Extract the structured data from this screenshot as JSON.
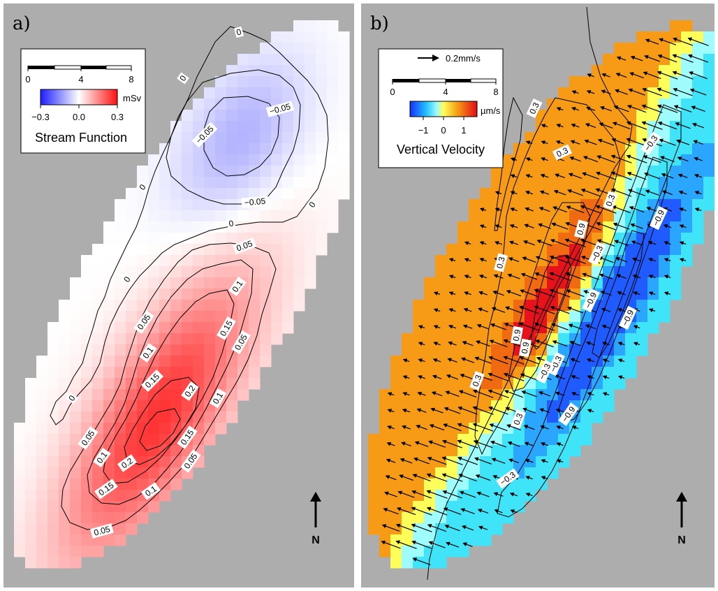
{
  "panels": [
    {
      "id": "a",
      "label": "a)",
      "scale_ticks": [
        "0",
        "4",
        "8"
      ],
      "colorbar_unit": "mSv",
      "colorbar_ticks": [
        "−0.3",
        "0.0",
        "0.3"
      ],
      "colorbar_title": "Stream Function",
      "north_label": "N"
    },
    {
      "id": "b",
      "label": "b)",
      "vector_scale_label": "0.2mm/s",
      "scale_ticks": [
        "0",
        "4",
        "8"
      ],
      "colorbar_unit": "µm/s",
      "colorbar_ticks": [
        "−1",
        "0",
        "1"
      ],
      "colorbar_title": "Vertical Velocity",
      "north_label": "N"
    }
  ],
  "colors": {
    "background": "#adadad",
    "stream_negative": "#2d3fff",
    "stream_positive": "#ff1f1f",
    "vv_blue": "#1f5bff",
    "vv_cyan": "#9ffcfc",
    "vv_yellow": "#fefe5a",
    "vv_orange": "#f79a16",
    "vv_red": "#e8121d"
  },
  "chart_data": [
    {
      "type": "heatmap",
      "field": "stream function",
      "unit": "mSv",
      "colorbar_range": [
        -0.3,
        0.3
      ],
      "contour_levels": [
        -0.05,
        0,
        0.05,
        0.1,
        0.15,
        0.2
      ],
      "contour_labels": [
        {
          "value": "0"
        },
        {
          "value": "0"
        },
        {
          "value": "0"
        },
        {
          "value": "0"
        },
        {
          "value": "0"
        },
        {
          "value": "0"
        },
        {
          "value": "0"
        },
        {
          "value": "−0.05"
        },
        {
          "value": "−0.05"
        },
        {
          "value": "−0.05"
        },
        {
          "value": "0.05"
        },
        {
          "value": "0.05"
        },
        {
          "value": "0.05"
        },
        {
          "value": "0.05"
        },
        {
          "value": "0.05"
        },
        {
          "value": "0.05"
        },
        {
          "value": "0.1"
        },
        {
          "value": "0.1"
        },
        {
          "value": "0.1"
        },
        {
          "value": "0.1"
        },
        {
          "value": "0.1"
        },
        {
          "value": "0.15"
        },
        {
          "value": "0.15"
        },
        {
          "value": "0.15"
        },
        {
          "value": "0.15"
        },
        {
          "value": "0.2"
        },
        {
          "value": "0.2"
        }
      ],
      "extrema": {
        "min_approx": -0.1,
        "max_approx": 0.25
      }
    },
    {
      "type": "heatmap",
      "field": "vertical velocity",
      "unit": "µm/s",
      "colorbar_range": [
        -1.5,
        1.5
      ],
      "contour_levels": [
        -0.9,
        -0.3,
        0.3,
        0.9
      ],
      "contour_labels": [
        {
          "value": "0.3"
        },
        {
          "value": "0.3"
        },
        {
          "value": "0.3"
        },
        {
          "value": "0.3"
        },
        {
          "value": "0.3"
        },
        {
          "value": "0.3"
        },
        {
          "value": "0.9"
        },
        {
          "value": "0.9"
        },
        {
          "value": "0.9"
        },
        {
          "value": "−0.3"
        },
        {
          "value": "−0.3"
        },
        {
          "value": "−0.3"
        },
        {
          "value": "−0.3"
        },
        {
          "value": "−0.3"
        },
        {
          "value": "−0.9"
        },
        {
          "value": "−0.9"
        },
        {
          "value": "−0.9"
        },
        {
          "value": "−0.9"
        }
      ],
      "vector_reference": "0.2mm/s",
      "extrema": {
        "min_approx": -1.4,
        "max_approx": 1.4
      }
    }
  ]
}
